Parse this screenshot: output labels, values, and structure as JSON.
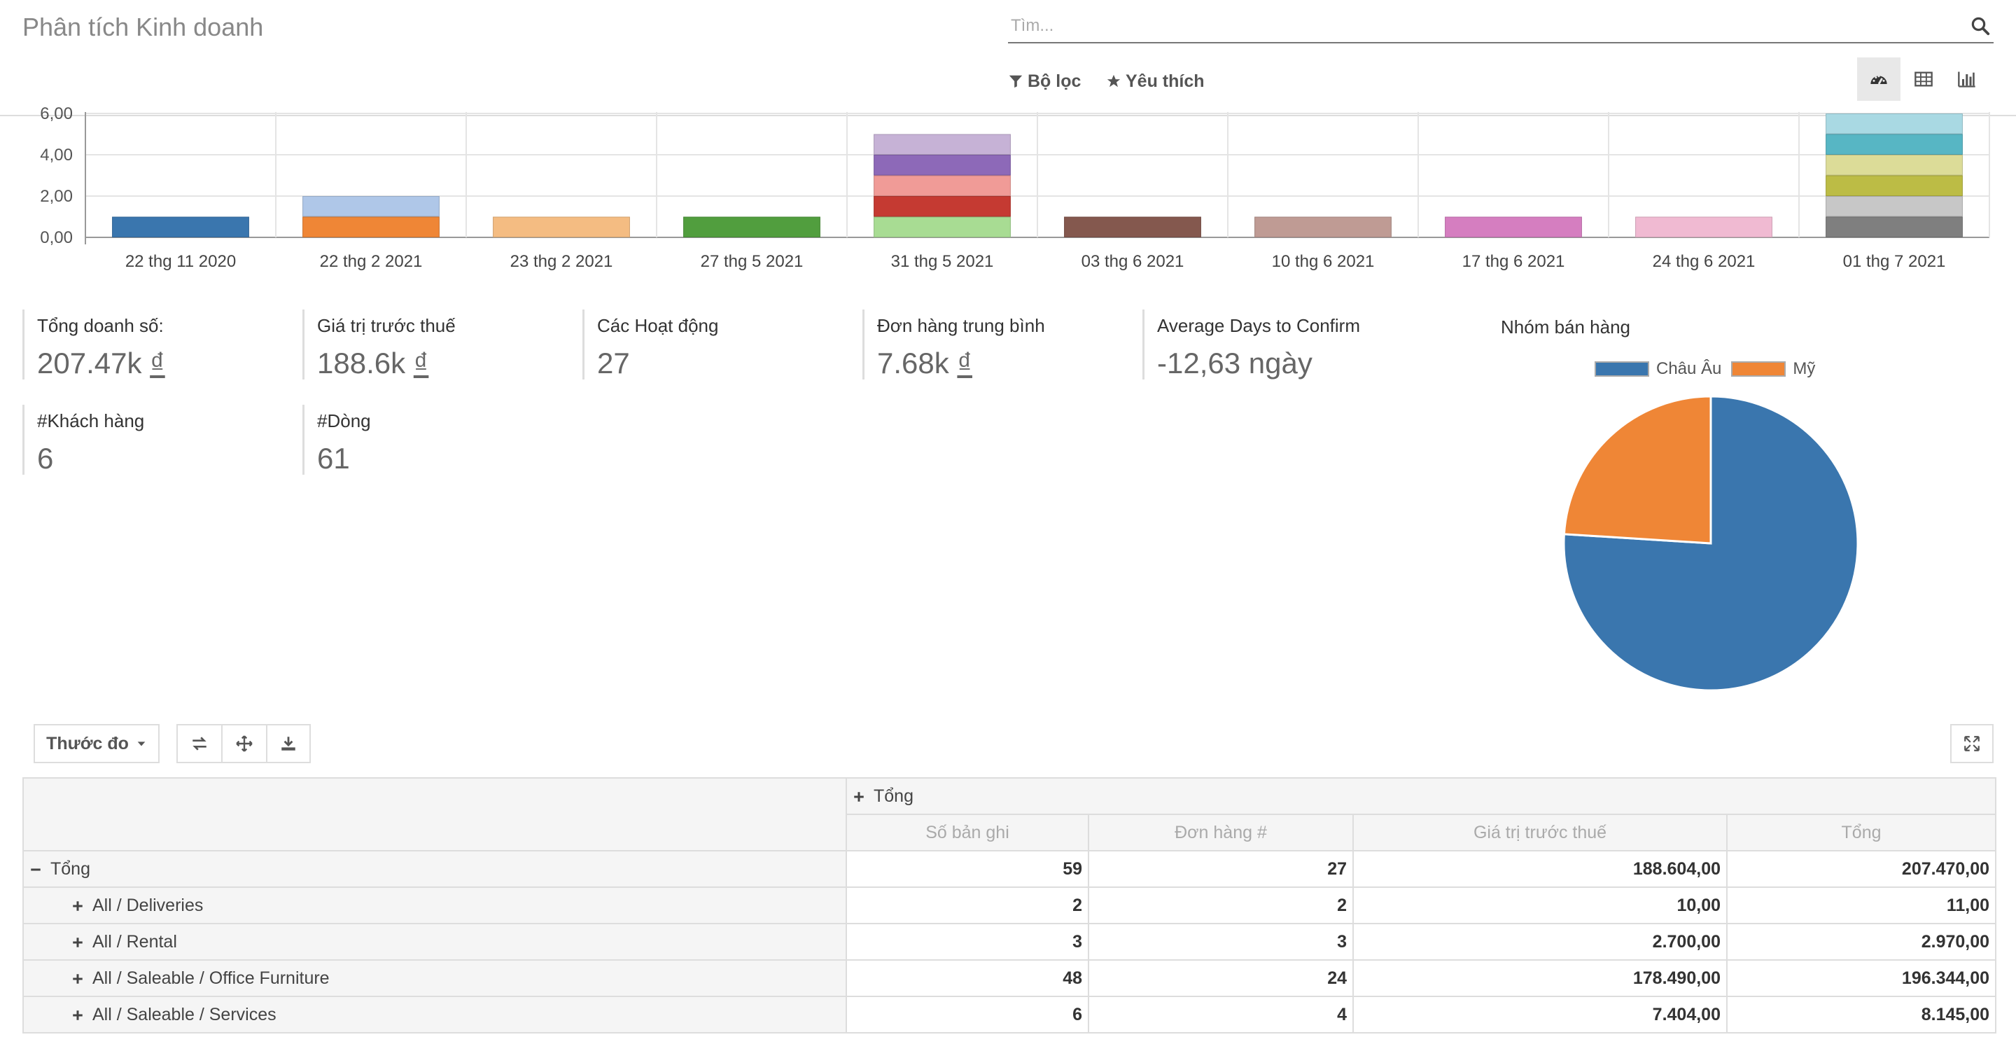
{
  "header": {
    "title": "Phân tích Kinh doanh",
    "search_placeholder": "Tìm...",
    "filter_label": "Bộ lọc",
    "favorites_label": "Yêu thích"
  },
  "icons": [
    "search-icon",
    "filter-icon",
    "star-icon",
    "dashboard-icon",
    "table-icon",
    "bar-chart-icon",
    "swap-icon",
    "expand-all-icon",
    "download-icon",
    "fullscreen-icon",
    "caret-down-icon",
    "plus-icon",
    "minus-icon"
  ],
  "chart_data": [
    {
      "type": "bar",
      "stacked": true,
      "ytick_labels": [
        "0,00",
        "2,00",
        "4,00",
        "6,00"
      ],
      "ylim": [
        0,
        6
      ],
      "grid": true,
      "categories": [
        "22 thg 11 2020",
        "22 thg 2 2021",
        "23 thg 2 2021",
        "27 thg 5 2021",
        "31 thg 5 2021",
        "03 thg 6 2021",
        "10 thg 6 2021",
        "17 thg 6 2021",
        "24 thg 6 2021",
        "01 thg 7 2021"
      ],
      "stacks": [
        [
          {
            "value": 1,
            "color": "#3a76ae"
          }
        ],
        [
          {
            "value": 1,
            "color": "#ef8636"
          },
          {
            "value": 1,
            "color": "#afc7e8"
          }
        ],
        [
          {
            "value": 1,
            "color": "#f4bc82"
          }
        ],
        [
          {
            "value": 1,
            "color": "#519e3e"
          }
        ],
        [
          {
            "value": 1,
            "color": "#a8dc93"
          },
          {
            "value": 1,
            "color": "#c53a32"
          },
          {
            "value": 1,
            "color": "#f09b97"
          },
          {
            "value": 1,
            "color": "#8d69b8"
          },
          {
            "value": 1,
            "color": "#c6b2d6"
          }
        ],
        [
          {
            "value": 1,
            "color": "#84584e"
          }
        ],
        [
          {
            "value": 1,
            "color": "#bf9b94"
          }
        ],
        [
          {
            "value": 1,
            "color": "#d57ec0"
          }
        ],
        [
          {
            "value": 1,
            "color": "#f0bad2"
          }
        ],
        [
          {
            "value": 1,
            "color": "#7f7f7f"
          },
          {
            "value": 1,
            "color": "#c7c7c7"
          },
          {
            "value": 1,
            "color": "#bcbc45"
          },
          {
            "value": 1,
            "color": "#dcdc98"
          },
          {
            "value": 1,
            "color": "#57b6c4"
          },
          {
            "value": 1,
            "color": "#a9d9e3"
          }
        ]
      ]
    },
    {
      "type": "pie",
      "title": "Nhóm bán hàng",
      "labels": [
        "Châu Âu",
        "Mỹ"
      ],
      "values": [
        76,
        24
      ],
      "colors": [
        "#3a76ae",
        "#ef8636"
      ],
      "legend": "top"
    }
  ],
  "kpis": [
    {
      "label": "Tổng doanh số:",
      "value": "207.47k",
      "currency": "₫"
    },
    {
      "label": "Giá trị trước thuế",
      "value": "188.6k",
      "currency": "₫"
    },
    {
      "label": "Các Hoạt động",
      "value": "27",
      "currency": ""
    },
    {
      "label": "Đơn hàng trung bình",
      "value": "7.68k",
      "currency": "₫"
    },
    {
      "label": "Average Days to Confirm",
      "value": "-12,63 ngày",
      "currency": ""
    },
    {
      "label": "#Khách hàng",
      "value": "6",
      "currency": ""
    },
    {
      "label": "#Dòng",
      "value": "61",
      "currency": ""
    }
  ],
  "pivot": {
    "measures_label": "Thước đo",
    "col_group": "Tổng",
    "columns": [
      "Số bản ghi",
      "Đơn hàng #",
      "Giá trị trước thuế",
      "Tổng"
    ],
    "rows": [
      {
        "label": "Tổng",
        "expanded": true,
        "indent": 0,
        "values": [
          "59",
          "27",
          "188.604,00",
          "207.470,00"
        ]
      },
      {
        "label": "All / Deliveries",
        "expanded": false,
        "indent": 1,
        "values": [
          "2",
          "2",
          "10,00",
          "11,00"
        ]
      },
      {
        "label": "All / Rental",
        "expanded": false,
        "indent": 1,
        "values": [
          "3",
          "3",
          "2.700,00",
          "2.970,00"
        ]
      },
      {
        "label": "All / Saleable / Office Furniture",
        "expanded": false,
        "indent": 1,
        "values": [
          "48",
          "24",
          "178.490,00",
          "196.344,00"
        ]
      },
      {
        "label": "All / Saleable / Services",
        "expanded": false,
        "indent": 1,
        "values": [
          "6",
          "4",
          "7.404,00",
          "8.145,00"
        ]
      }
    ]
  }
}
